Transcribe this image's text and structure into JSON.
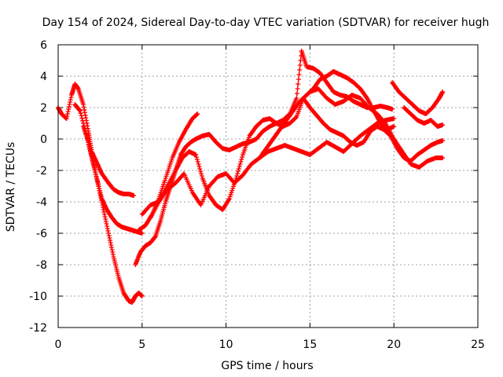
{
  "chart_data": {
    "type": "scatter",
    "title": "Day 154 of 2024, Sidereal Day-to-day VTEC variation (SDTVAR) for receiver hugh",
    "xlabel": "GPS time / hours",
    "ylabel": "SDTVAR / TECUs",
    "xlim": [
      0,
      25
    ],
    "ylim": [
      -12,
      6
    ],
    "xticks": [
      0,
      5,
      10,
      15,
      20,
      25
    ],
    "yticks": [
      -12,
      -10,
      -8,
      -6,
      -4,
      -2,
      0,
      2,
      4,
      6
    ],
    "grid": true,
    "marker": "plus",
    "series": [
      {
        "color": "#ff0000",
        "x": [
          0.0,
          0.2,
          0.5,
          0.8,
          1.0,
          1.2,
          1.5,
          1.8,
          2.0,
          2.3,
          2.6,
          3.0,
          3.3,
          3.6,
          3.9,
          4.2,
          4.5
        ],
        "y": [
          2.0,
          1.6,
          1.3,
          2.8,
          3.5,
          3.2,
          2.2,
          0.5,
          -0.8,
          -1.5,
          -2.2,
          -2.8,
          -3.2,
          -3.4,
          -3.5,
          -3.5,
          -3.6
        ]
      },
      {
        "color": "#ff0000",
        "x": [
          1.0,
          1.3,
          1.7,
          2.0,
          2.3,
          2.6,
          2.9,
          3.2,
          3.5,
          3.8,
          4.1,
          4.4,
          4.7,
          5.0
        ],
        "y": [
          2.2,
          1.8,
          0.2,
          -1.2,
          -2.5,
          -3.8,
          -4.5,
          -5.0,
          -5.4,
          -5.6,
          -5.7,
          -5.8,
          -5.9,
          -6.0
        ]
      },
      {
        "color": "#ff0000",
        "x": [
          1.5,
          1.8,
          2.1,
          2.4,
          2.7,
          3.0,
          3.3,
          3.6,
          3.9,
          4.2,
          4.4,
          4.6,
          4.8,
          5.0
        ],
        "y": [
          0.8,
          -0.2,
          -1.5,
          -3.0,
          -4.5,
          -6.0,
          -7.5,
          -8.8,
          -9.8,
          -10.3,
          -10.4,
          -10.0,
          -9.8,
          -10.0
        ]
      },
      {
        "color": "#ff0000",
        "x": [
          4.6,
          4.9,
          5.2,
          5.5,
          5.8,
          6.1,
          6.4,
          6.7,
          7.0,
          7.3,
          7.6,
          7.9,
          8.2,
          8.6,
          9.0,
          9.4,
          9.8,
          10.2,
          10.6,
          11.0,
          11.4,
          11.8,
          12.2,
          12.6,
          13.0,
          13.4,
          13.8,
          14.2,
          14.5
        ],
        "y": [
          -8.0,
          -7.2,
          -6.8,
          -6.6,
          -6.2,
          -5.2,
          -4.0,
          -3.0,
          -2.0,
          -1.0,
          -0.5,
          -0.2,
          0.0,
          0.2,
          0.3,
          -0.2,
          -0.6,
          -0.7,
          -0.5,
          -0.3,
          -0.2,
          0.0,
          0.5,
          0.8,
          1.0,
          1.2,
          1.6,
          2.6,
          5.6
        ]
      },
      {
        "color": "#ff0000",
        "x": [
          14.5,
          14.8,
          15.2,
          15.6,
          16.0,
          16.4,
          16.8,
          17.2,
          17.6,
          18.0,
          18.4,
          18.8,
          19.2,
          19.6,
          19.9
        ],
        "y": [
          5.6,
          4.6,
          4.5,
          4.2,
          3.6,
          3.0,
          2.8,
          2.7,
          2.4,
          2.2,
          2.0,
          2.0,
          2.1,
          2.0,
          1.9
        ]
      },
      {
        "color": "#ff0000",
        "x": [
          4.8,
          5.2,
          5.6,
          6.0,
          6.4,
          6.8,
          7.2,
          7.6,
          8.0,
          8.3
        ],
        "y": [
          -5.8,
          -5.5,
          -4.8,
          -3.8,
          -2.5,
          -1.2,
          -0.2,
          0.6,
          1.3,
          1.6
        ]
      },
      {
        "color": "#ff0000",
        "x": [
          5.5,
          6.0,
          6.5,
          7.0,
          7.4,
          7.8,
          8.2,
          8.6,
          9.0,
          9.4,
          9.8,
          10.2,
          10.6,
          11.0,
          11.4,
          11.8,
          12.2,
          12.6,
          13.0,
          13.4,
          13.8,
          14.2,
          14.6,
          15.0,
          15.4,
          15.8,
          16.2,
          16.6,
          17.0,
          17.4,
          17.8,
          18.2,
          18.6,
          19.0,
          19.4,
          19.8,
          20.2,
          20.6,
          21.0,
          21.4,
          21.8,
          22.2,
          22.6,
          22.9
        ],
        "y": [
          -5.0,
          -4.0,
          -3.0,
          -2.0,
          -1.2,
          -0.8,
          -1.0,
          -2.5,
          -3.6,
          -4.2,
          -4.5,
          -3.8,
          -2.5,
          -1.0,
          0.2,
          0.8,
          1.2,
          1.3,
          1.0,
          0.8,
          1.0,
          1.4,
          2.6,
          2.0,
          1.5,
          1.0,
          0.6,
          0.4,
          0.2,
          -0.2,
          -0.4,
          -0.2,
          0.5,
          0.8,
          0.6,
          0.2,
          -0.6,
          -1.2,
          -1.4,
          -1.0,
          -0.7,
          -0.4,
          -0.2,
          -0.1
        ]
      },
      {
        "color": "#ff0000",
        "x": [
          5.0,
          5.5,
          6.0,
          6.5,
          7.0,
          7.5,
          8.0,
          8.5,
          9.0,
          9.5,
          10.0,
          10.5,
          11.0,
          11.5,
          12.0,
          12.5,
          13.0,
          13.5,
          14.0,
          14.5,
          15.0,
          15.5,
          16.0,
          16.5,
          17.0,
          17.5,
          18.0,
          18.5,
          19.0,
          19.5,
          20.0
        ],
        "y": [
          -4.8,
          -4.2,
          -4.0,
          -3.2,
          -2.8,
          -2.2,
          -3.4,
          -4.2,
          -3.0,
          -2.4,
          -2.2,
          -2.8,
          -2.3,
          -1.6,
          -1.2,
          -0.8,
          -0.6,
          -0.4,
          -0.6,
          -0.8,
          -1.0,
          -0.6,
          -0.2,
          -0.5,
          -0.8,
          -0.3,
          0.2,
          0.6,
          1.0,
          1.2,
          1.3
        ]
      },
      {
        "color": "#ff0000",
        "x": [
          12.0,
          12.4,
          12.8,
          13.2,
          13.6,
          14.0,
          14.4,
          14.8,
          15.2,
          15.6,
          16.0,
          16.4,
          16.8,
          17.2,
          17.6,
          18.0,
          18.4,
          18.8,
          19.2,
          19.6,
          20.0
        ],
        "y": [
          -1.2,
          -0.6,
          0.0,
          0.6,
          1.2,
          1.8,
          2.4,
          2.8,
          3.2,
          3.8,
          4.0,
          4.3,
          4.1,
          3.9,
          3.6,
          3.2,
          2.6,
          1.8,
          1.0,
          0.6,
          0.8
        ]
      },
      {
        "color": "#ff0000",
        "x": [
          15.0,
          15.5,
          16.0,
          16.5,
          17.0,
          17.5,
          18.0,
          18.5,
          19.0,
          19.5,
          20.0,
          20.5,
          21.0,
          21.5,
          22.0,
          22.5,
          22.9
        ],
        "y": [
          3.0,
          3.2,
          2.6,
          2.2,
          2.4,
          2.8,
          2.6,
          2.0,
          1.6,
          1.0,
          0.0,
          -0.8,
          -1.6,
          -1.8,
          -1.4,
          -1.2,
          -1.2
        ]
      },
      {
        "color": "#ff0000",
        "x": [
          19.9,
          20.3,
          20.7,
          21.1,
          21.5,
          21.9,
          22.3,
          22.7,
          22.9
        ],
        "y": [
          3.6,
          3.0,
          2.6,
          2.2,
          1.8,
          1.6,
          2.0,
          2.6,
          3.0
        ]
      },
      {
        "color": "#ff0000",
        "x": [
          20.6,
          21.0,
          21.4,
          21.8,
          22.2,
          22.6,
          22.9
        ],
        "y": [
          2.0,
          1.6,
          1.2,
          1.0,
          1.2,
          0.8,
          0.9
        ]
      }
    ]
  }
}
